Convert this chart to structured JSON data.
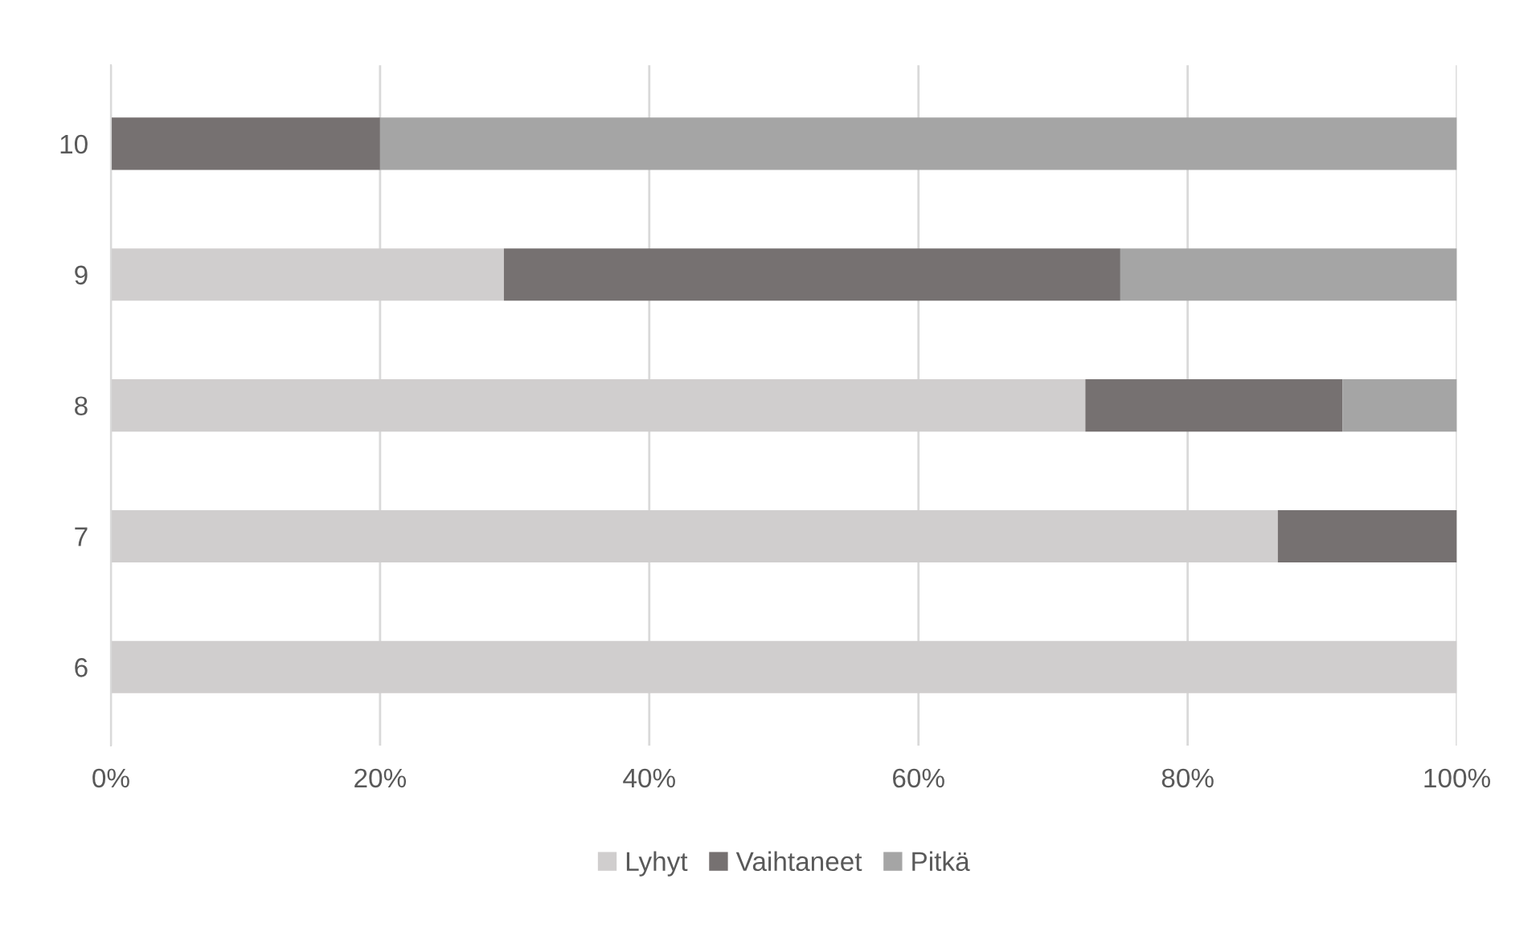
{
  "chart_data": {
    "type": "bar",
    "orientation": "horizontal",
    "stacked": true,
    "categories": [
      "10",
      "9",
      "8",
      "7",
      "6"
    ],
    "series": [
      {
        "name": "Lyhyt",
        "color": "#d0cece",
        "values": [
          null,
          29.2,
          72.4,
          86.7,
          100
        ]
      },
      {
        "name": "Vaihtaneet",
        "color": "#767171",
        "values": [
          20,
          45.8,
          19.1,
          13.3,
          null
        ]
      },
      {
        "name": "Pitkä",
        "color": "#a5a5a5",
        "values": [
          80,
          25,
          8.5,
          null,
          null
        ]
      }
    ],
    "xlim": [
      0,
      100
    ],
    "xticks": [
      {
        "value": 0,
        "label": "0%"
      },
      {
        "value": 20,
        "label": "20%"
      },
      {
        "value": 40,
        "label": "40%"
      },
      {
        "value": 60,
        "label": "60%"
      },
      {
        "value": 80,
        "label": "80%"
      },
      {
        "value": 100,
        "label": "100%"
      }
    ],
    "grid": "x",
    "legend": "bottom"
  }
}
